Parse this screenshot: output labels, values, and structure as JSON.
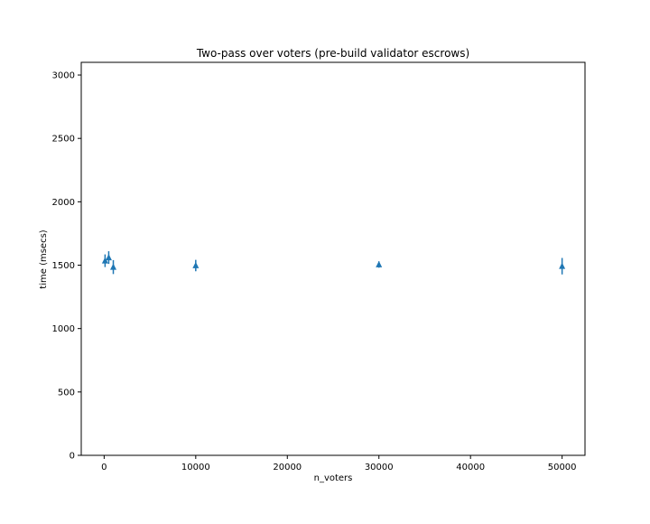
{
  "chart_data": {
    "type": "scatter",
    "title": "Two-pass over voters (pre-build validator escrows)",
    "xlabel": "n_voters",
    "ylabel": "time (msecs)",
    "xlim": [
      -2500,
      52500
    ],
    "ylim": [
      0,
      3100
    ],
    "xticks": [
      0,
      10000,
      20000,
      30000,
      40000,
      50000
    ],
    "yticks": [
      0,
      500,
      1000,
      1500,
      2000,
      2500,
      3000
    ],
    "grid": false,
    "marker": "triangle-up",
    "color": "#1f77b4",
    "series": [
      {
        "x": [
          100,
          500,
          1000,
          10000,
          30000,
          50000
        ],
        "y": [
          1535,
          1560,
          1485,
          1497,
          1505,
          1492
        ],
        "yerr": [
          50,
          50,
          55,
          45,
          25,
          65
        ]
      }
    ]
  }
}
